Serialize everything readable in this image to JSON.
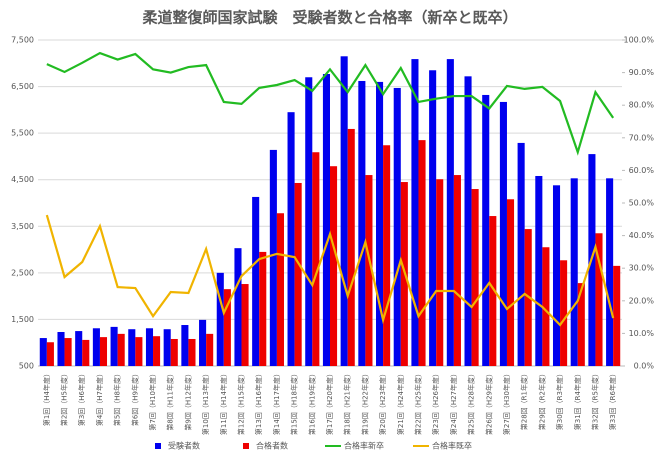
{
  "chart_data": {
    "type": "bar_line",
    "title": "柔道整復師国家試験　受験者数と合格率（新卒と既卒）",
    "categories": [
      "第1回（H4年度）",
      "第2回（H5年度）",
      "第3回（H6年度）",
      "第4回（H7年度）",
      "第5回（H8年度）",
      "第6回（H9年度）",
      "第7回（H10年度）",
      "第8回（H11年度）",
      "第9回（H12年度）",
      "第10回（H13年度）",
      "第11回（H14年度）",
      "第12回（H15年度）",
      "第13回（H16年度）",
      "第14回（H17年度）",
      "第15回（H18年度）",
      "第16回（H19年度）",
      "第17回（H20年度）",
      "第18回（H21年度）",
      "第19回（H22年度）",
      "第20回（H23年度）",
      "第21回（H24年度）",
      "第22回（H25年度）",
      "第23回（H26年度）",
      "第24回（H27年度）",
      "第25回（H28年度）",
      "第26回（H29年度）",
      "第27回（H30年度）",
      "第28回（R1年度）",
      "第29回（R2年度）",
      "第30回（R3年度）",
      "第31回（R4年度）",
      "第32回（R5年度）",
      "第33回（R6年度）"
    ],
    "series": [
      {
        "name": "受験者数",
        "type": "bar",
        "color": "#0000ee",
        "values": [
          1100,
          1230,
          1250,
          1310,
          1340,
          1290,
          1310,
          1290,
          1380,
          1490,
          2500,
          3030,
          4130,
          5140,
          5950,
          6700,
          6770,
          7150,
          6620,
          6600,
          6470,
          7090,
          6850,
          7090,
          6720,
          6320,
          6170,
          5290,
          4580,
          4380,
          4530,
          5050,
          4530
        ]
      },
      {
        "name": "合格者数",
        "type": "bar",
        "color": "#ee0000",
        "values": [
          1010,
          1100,
          1060,
          1120,
          1190,
          1120,
          1140,
          1080,
          1080,
          1190,
          2150,
          2260,
          2950,
          3780,
          4430,
          5090,
          4790,
          5590,
          4600,
          5240,
          4450,
          5350,
          4510,
          4600,
          4300,
          3720,
          4080,
          3440,
          3050,
          2770,
          2280,
          3350,
          2650
        ]
      },
      {
        "name": "合格率新卒",
        "type": "line",
        "axis": "y2",
        "color": "#22bb22",
        "values": [
          92.6,
          90.2,
          93,
          96,
          94,
          95.7,
          91,
          90,
          91.7,
          92.3,
          81,
          80.4,
          85.3,
          86.2,
          87.7,
          84.4,
          91,
          84,
          92.3,
          83.4,
          91.4,
          81,
          82,
          82.8,
          82.8,
          79,
          85.9,
          85,
          85.6,
          81.3,
          65.6,
          84,
          76.1
        ]
      },
      {
        "name": "合格率既卒",
        "type": "line",
        "axis": "y2",
        "color": "#f0b400",
        "values": [
          46.3,
          27.3,
          31.9,
          42.9,
          24.2,
          23.9,
          15.3,
          22.7,
          22.4,
          35.9,
          16.3,
          27.6,
          32.8,
          34.4,
          33.4,
          24.8,
          40.5,
          21.5,
          38,
          14.1,
          32.5,
          15.3,
          23,
          23,
          18.1,
          25.5,
          17.5,
          22.1,
          18.1,
          12.6,
          20,
          36.5,
          14.7
        ]
      }
    ],
    "ylim": [
      500,
      7500
    ],
    "yticks": [
      500,
      {
        "value": 1500,
        "label": "1,500"
      },
      {
        "value": 2500,
        "label": "2,500"
      },
      {
        "value": 3500,
        "label": "3,500"
      },
      {
        "value": 4500,
        "label": "4,500"
      },
      {
        "value": 5500,
        "label": "5,500"
      },
      {
        "value": 6500,
        "label": "6,500"
      },
      {
        "value": 7500,
        "label": "7,500"
      }
    ],
    "y2lim": [
      0,
      100
    ],
    "y2ticks": [
      {
        "value": 0,
        "label": "0.0%"
      },
      {
        "value": 10,
        "label": "10.0%"
      },
      {
        "value": 20,
        "label": "20.0%"
      },
      {
        "value": 30,
        "label": "30.0%"
      },
      {
        "value": 40,
        "label": "40.0%"
      },
      {
        "value": 50,
        "label": "50.0%"
      },
      {
        "value": 60,
        "label": "60.0%"
      },
      {
        "value": 70,
        "label": "70.0%"
      },
      {
        "value": 80,
        "label": "80.0%"
      },
      {
        "value": 90,
        "label": "90.0%"
      },
      {
        "value": 100,
        "label": "100.0%"
      }
    ],
    "grid": true,
    "legend": "bottom"
  }
}
